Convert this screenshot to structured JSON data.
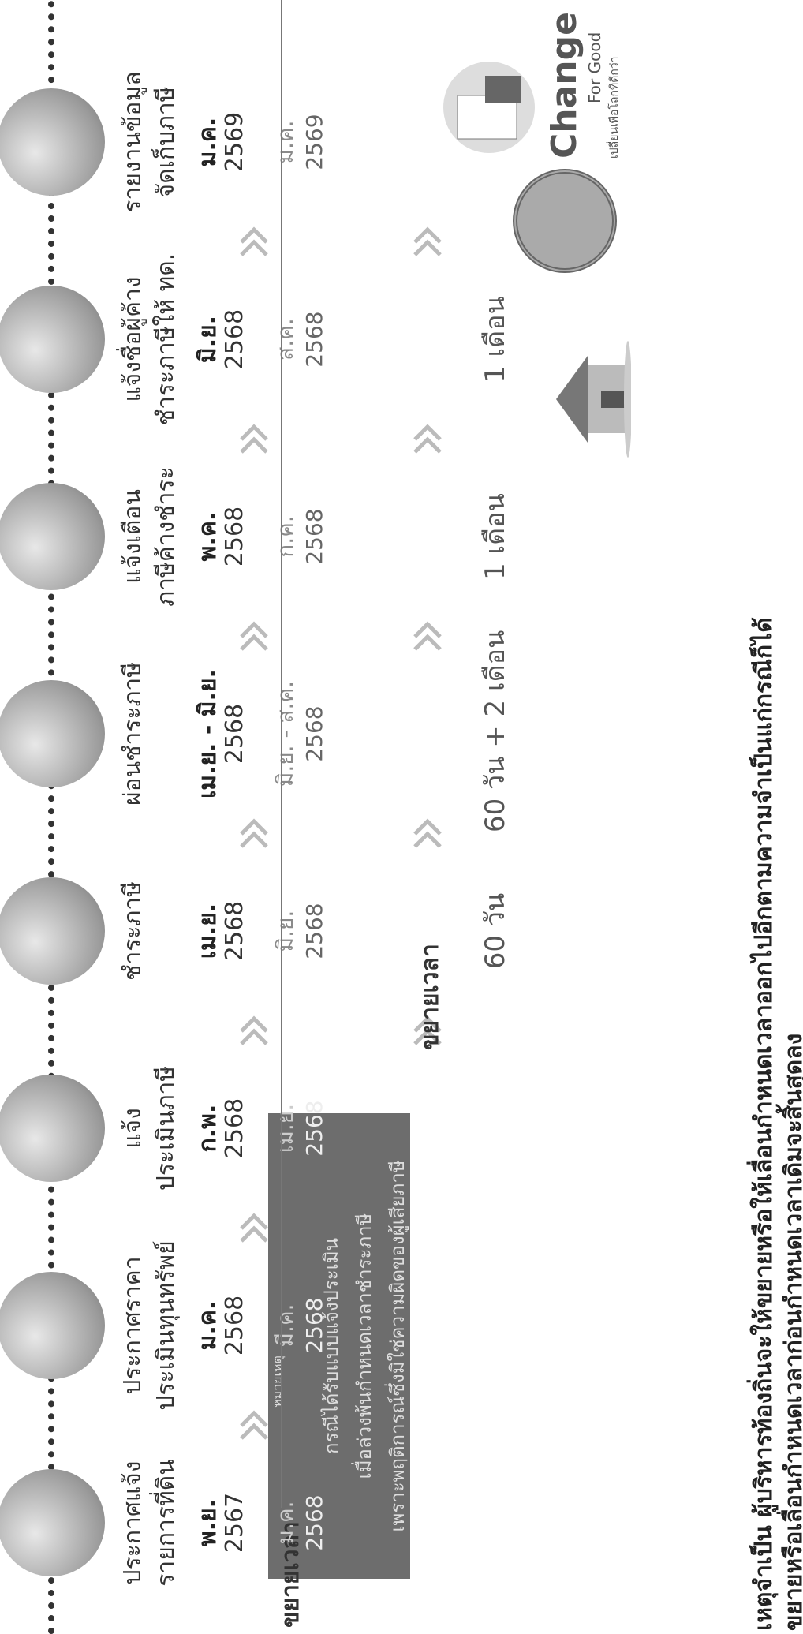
{
  "labels": [
    "ขยายเวลา",
    "ขยายเวลา"
  ],
  "steps": [
    {
      "title": [
        "ประกาศแจ้ง",
        "รายการที่ดิน"
      ],
      "due": {
        "month": "พ.ย.",
        "year": "2567"
      },
      "extended": {
        "month": "ม.ค.",
        "year": "2568"
      }
    },
    {
      "title": [
        "ประกาศราคา",
        "ประเมินทุนทรัพย์"
      ],
      "due": {
        "month": "ม.ค.",
        "year": "2568"
      },
      "extended": {
        "month": "มี.ค.",
        "year": "2568"
      }
    },
    {
      "title": [
        "แจ้ง",
        "ประเมินภาษี"
      ],
      "due": {
        "month": "ก.พ.",
        "year": "2568"
      },
      "extended": {
        "month": "เม.ย.",
        "year": "2568"
      }
    },
    {
      "title": [
        "ชำระภาษี"
      ],
      "due": {
        "month": "เม.ย.",
        "year": "2568"
      },
      "extended": {
        "month": "มิ.ย.",
        "year": "2568"
      },
      "extension": "60 วัน"
    },
    {
      "title": [
        "ผ่อนชำระภาษี"
      ],
      "due": {
        "month": "เม.ย. - มิ.ย.",
        "year": "2568"
      },
      "extended": {
        "month": "มิ.ย. - ส.ค.",
        "year": "2568"
      },
      "extension": "60 วัน + 2 เดือน"
    },
    {
      "title": [
        "แจ้งเตือน",
        "ภาษีค้างชำระ"
      ],
      "due": {
        "month": "พ.ค.",
        "year": "2568"
      },
      "extended": {
        "month": "ก.ค.",
        "year": "2568"
      },
      "extension": "1 เดือน"
    },
    {
      "title": [
        "แจ้งชื่อผู้ค้าง",
        "ชำระภาษีให้ ทด."
      ],
      "due": {
        "month": "มิ.ย.",
        "year": "2568"
      },
      "extended": {
        "month": "ส.ค.",
        "year": "2568"
      },
      "extension": "1 เดือน"
    },
    {
      "title": [
        "รายงานข้อมูล",
        "จัดเก็บภาษี"
      ],
      "due": {
        "month": "ม.ค.",
        "year": "2569"
      },
      "extended": {
        "month": "ม.ค.",
        "year": "2569"
      }
    }
  ],
  "note": {
    "heading": "หมายเหตุ",
    "lines": [
      "กรณีได้รับแบบแจ้งประเมิน",
      "เมื่อล่วงพ้นกำหนดเวลาชำระภาษี",
      "เพราะพฤติการณ์ซึ่งมิใช่ความผิดของผู้เสียภาษี"
    ]
  },
  "footer": [
    "เหตุจำเป็น ผู้บริหารท้องถิ่นจะให้ขยายหรือให้เลื่อนกำหนดเวลาออกไปอีกตามความจำเป็นแก่กรณีก็ได้",
    "ขยายหรือเลื่อนกำหนดเวลาก่อนกำหนดเวลาเดิมจะสิ้นสุดลง"
  ],
  "logo": {
    "name": "Change",
    "sub": "For Good",
    "tagline": "เปลี่ยนเพื่อโลกที่ดีกว่า"
  }
}
